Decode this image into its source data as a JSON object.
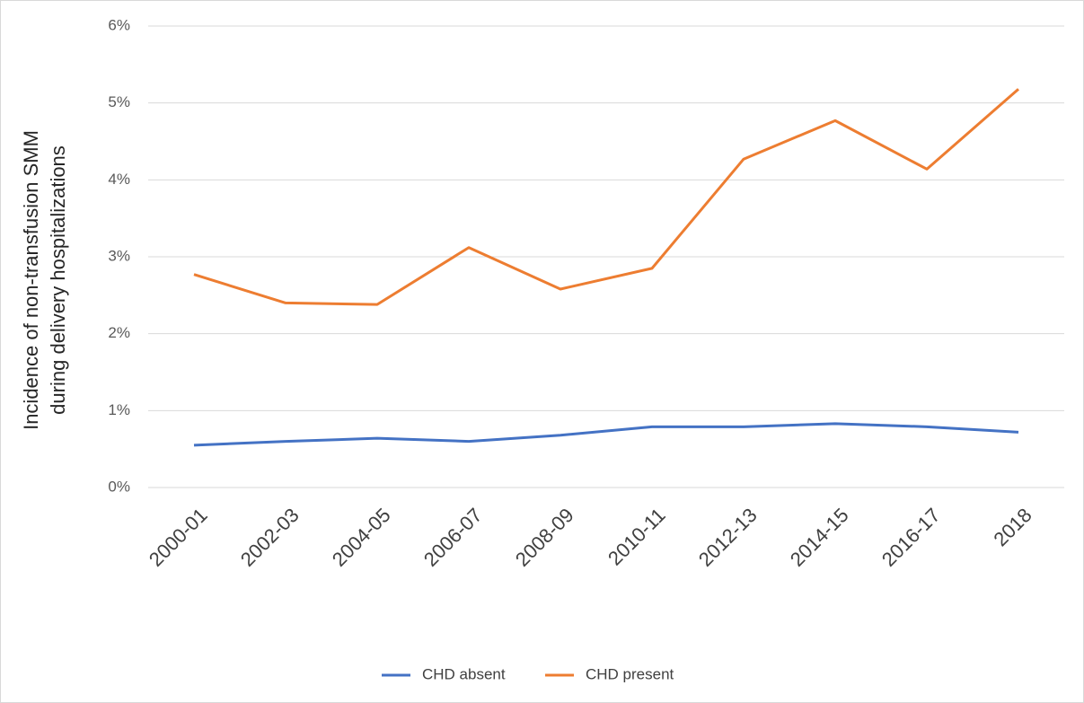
{
  "chart_data": {
    "type": "line",
    "y_label": [
      "Incidence of non-transfusion SMM",
      "during delivery hospitalizations"
    ],
    "categories": [
      "2000-01",
      "2002-03",
      "2004-05",
      "2006-07",
      "2008-09",
      "2010-11",
      "2012-13",
      "2014-15",
      "2016-17",
      "2018"
    ],
    "series": [
      {
        "name": "CHD absent",
        "color": "#4472c4",
        "values": [
          0.55,
          0.6,
          0.64,
          0.6,
          0.68,
          0.79,
          0.79,
          0.83,
          0.79,
          0.72
        ]
      },
      {
        "name": "CHD present",
        "color": "#ed7d31",
        "values": [
          2.77,
          2.4,
          2.38,
          3.12,
          2.58,
          2.85,
          4.27,
          4.77,
          4.14,
          5.18
        ]
      }
    ],
    "ylim": [
      0,
      6
    ],
    "yticks": [
      {
        "value": 0,
        "label": "0%"
      },
      {
        "value": 1,
        "label": "1%"
      },
      {
        "value": 2,
        "label": "2%"
      },
      {
        "value": 3,
        "label": "3%"
      },
      {
        "value": 4,
        "label": "4%"
      },
      {
        "value": 5,
        "label": "5%"
      },
      {
        "value": 6,
        "label": "6%"
      }
    ],
    "grid": true,
    "legend": "bottom"
  }
}
